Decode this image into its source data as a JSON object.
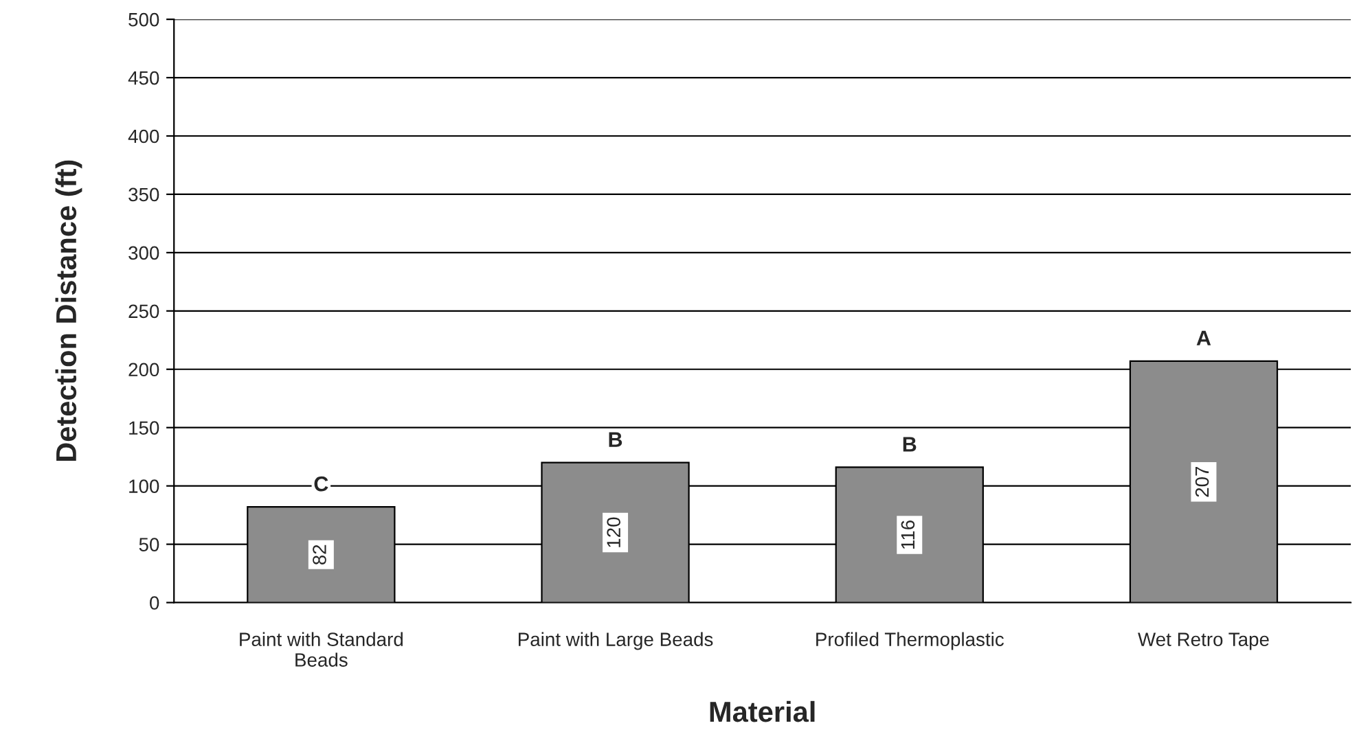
{
  "chart_data": {
    "type": "bar",
    "categories": [
      "Paint with Standard\nBeads",
      "Paint with Large Beads",
      "Profiled Thermoplastic",
      "Wet Retro Tape"
    ],
    "values": [
      82,
      120,
      116,
      207
    ],
    "color": "#8c8c8c",
    "data_labels": true,
    "xlabel": "Material",
    "ylabel": "Detection Distance (ft)",
    "ylim": [
      0,
      500
    ],
    "yticks": [
      0,
      50,
      100,
      150,
      200,
      250,
      300,
      350,
      400,
      450,
      500
    ],
    "grid": "y",
    "annotations": [
      "C",
      "B",
      "B",
      "A"
    ]
  }
}
